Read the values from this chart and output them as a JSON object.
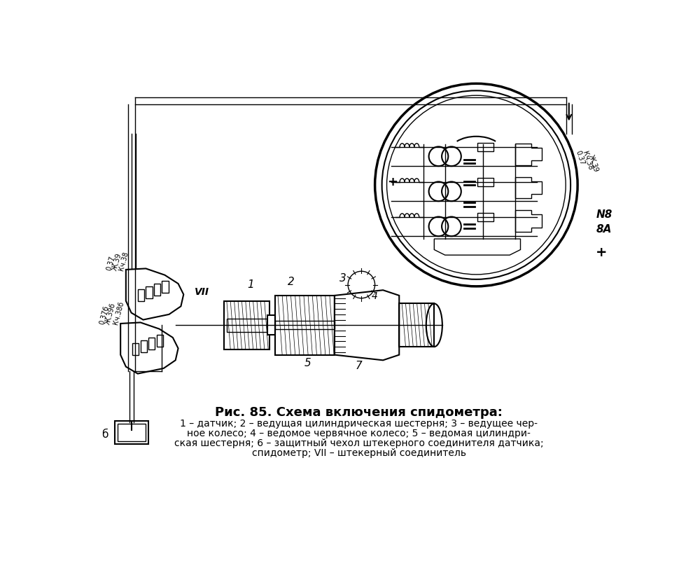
{
  "bg_color": "#ffffff",
  "fig_width": 10.0,
  "fig_height": 8.21,
  "dpi": 100,
  "title": "Рис. 85. Схема включения спидометра:",
  "cap1": "1 – датчик; 2 – ведущая цилиндрическая шестерня; 3 – ведущее чер-",
  "cap2": "ное колесо; 4 – ведомое червячное колесо; 5 – ведомая цилиндри-",
  "cap3": "ская шестерня; 6 – защитный чехол штекерного соединителя датчика;",
  "cap4": "спидометр; VII – штекерный соединитель",
  "color": "#000000"
}
